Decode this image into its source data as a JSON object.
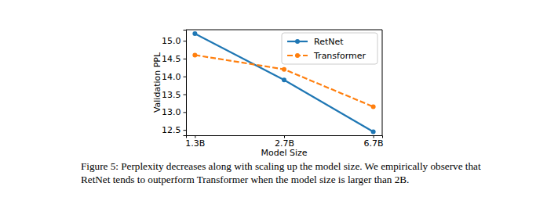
{
  "chart_data": {
    "type": "line",
    "x_label": "Model Size",
    "y_label": "Validation PPL",
    "caption": [
      "Figure 5: Perplexity decreases along with scaling up the model size. We empirically observe that",
      "RetNet tends to outperform Transformer when the model size is larger than 2B."
    ],
    "categories": [
      "1.3B",
      "2.7B",
      "6.7B"
    ],
    "series": [
      {
        "name": "RetNet",
        "color": "#1f77b4",
        "line_style": "solid",
        "marker": "circle",
        "values": [
          15.2,
          13.9,
          12.45
        ]
      },
      {
        "name": "Transformer",
        "color": "#ff7f0e",
        "line_style": "dashed",
        "marker": "circle",
        "values": [
          14.6,
          14.2,
          13.15
        ]
      }
    ],
    "ylim": [
      12.35,
      15.31
    ],
    "yticks": [
      12.5,
      {
        "value": 13,
        "label": "13.0"
      },
      13.5,
      {
        "value": 14,
        "label": "14.0"
      },
      14.5,
      {
        "value": 15,
        "label": "15.0"
      }
    ],
    "grid": false,
    "legend": "upper right"
  }
}
